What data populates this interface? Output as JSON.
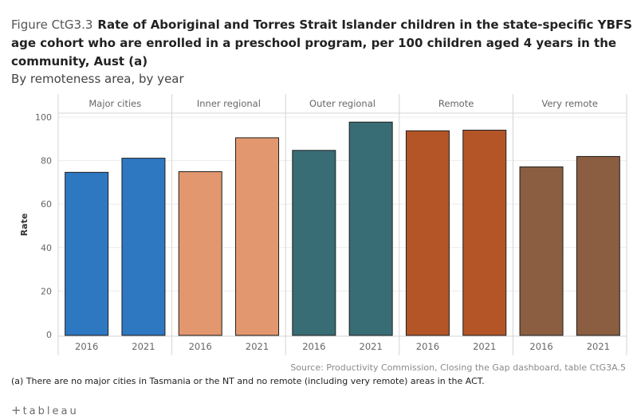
{
  "header": {
    "figure_label": "Figure CtG3.3",
    "title": "Rate of Aboriginal and Torres Strait Islander children in the state-specific YBFS age cohort who are enrolled in a preschool program, per 100 children aged 4 years in the community, Aust (a)",
    "subtitle": "By remoteness area, by year"
  },
  "chart_data": {
    "type": "bar",
    "ylabel": "Rate",
    "xlabel": "",
    "ylim": [
      0,
      100
    ],
    "yticks": [
      0,
      20,
      40,
      60,
      80,
      100
    ],
    "grid": true,
    "panels": [
      {
        "name": "Major cities",
        "color": "#2e78c2",
        "categories": [
          "2016",
          "2021"
        ],
        "values": [
          74.6,
          81.1
        ]
      },
      {
        "name": "Inner regional",
        "color": "#e3976f",
        "categories": [
          "2016",
          "2021"
        ],
        "values": [
          74.9,
          90.5
        ]
      },
      {
        "name": "Outer regional",
        "color": "#386d75",
        "categories": [
          "2016",
          "2021"
        ],
        "values": [
          84.7,
          97.7
        ]
      },
      {
        "name": "Remote",
        "color": "#b35527",
        "categories": [
          "2016",
          "2021"
        ],
        "values": [
          93.7,
          94.0
        ]
      },
      {
        "name": "Very remote",
        "color": "#8b5e41",
        "categories": [
          "2016",
          "2021"
        ],
        "values": [
          77.1,
          81.9
        ]
      }
    ]
  },
  "footer": {
    "source": "Source: Productivity Commission, Closing the Gap dashboard, table CtG3A.5",
    "note": "(a) There are no major cities in Tasmania or the NT and no remote (including very remote) areas in the ACT.",
    "brand": "tableau",
    "brand_mark": "+"
  }
}
